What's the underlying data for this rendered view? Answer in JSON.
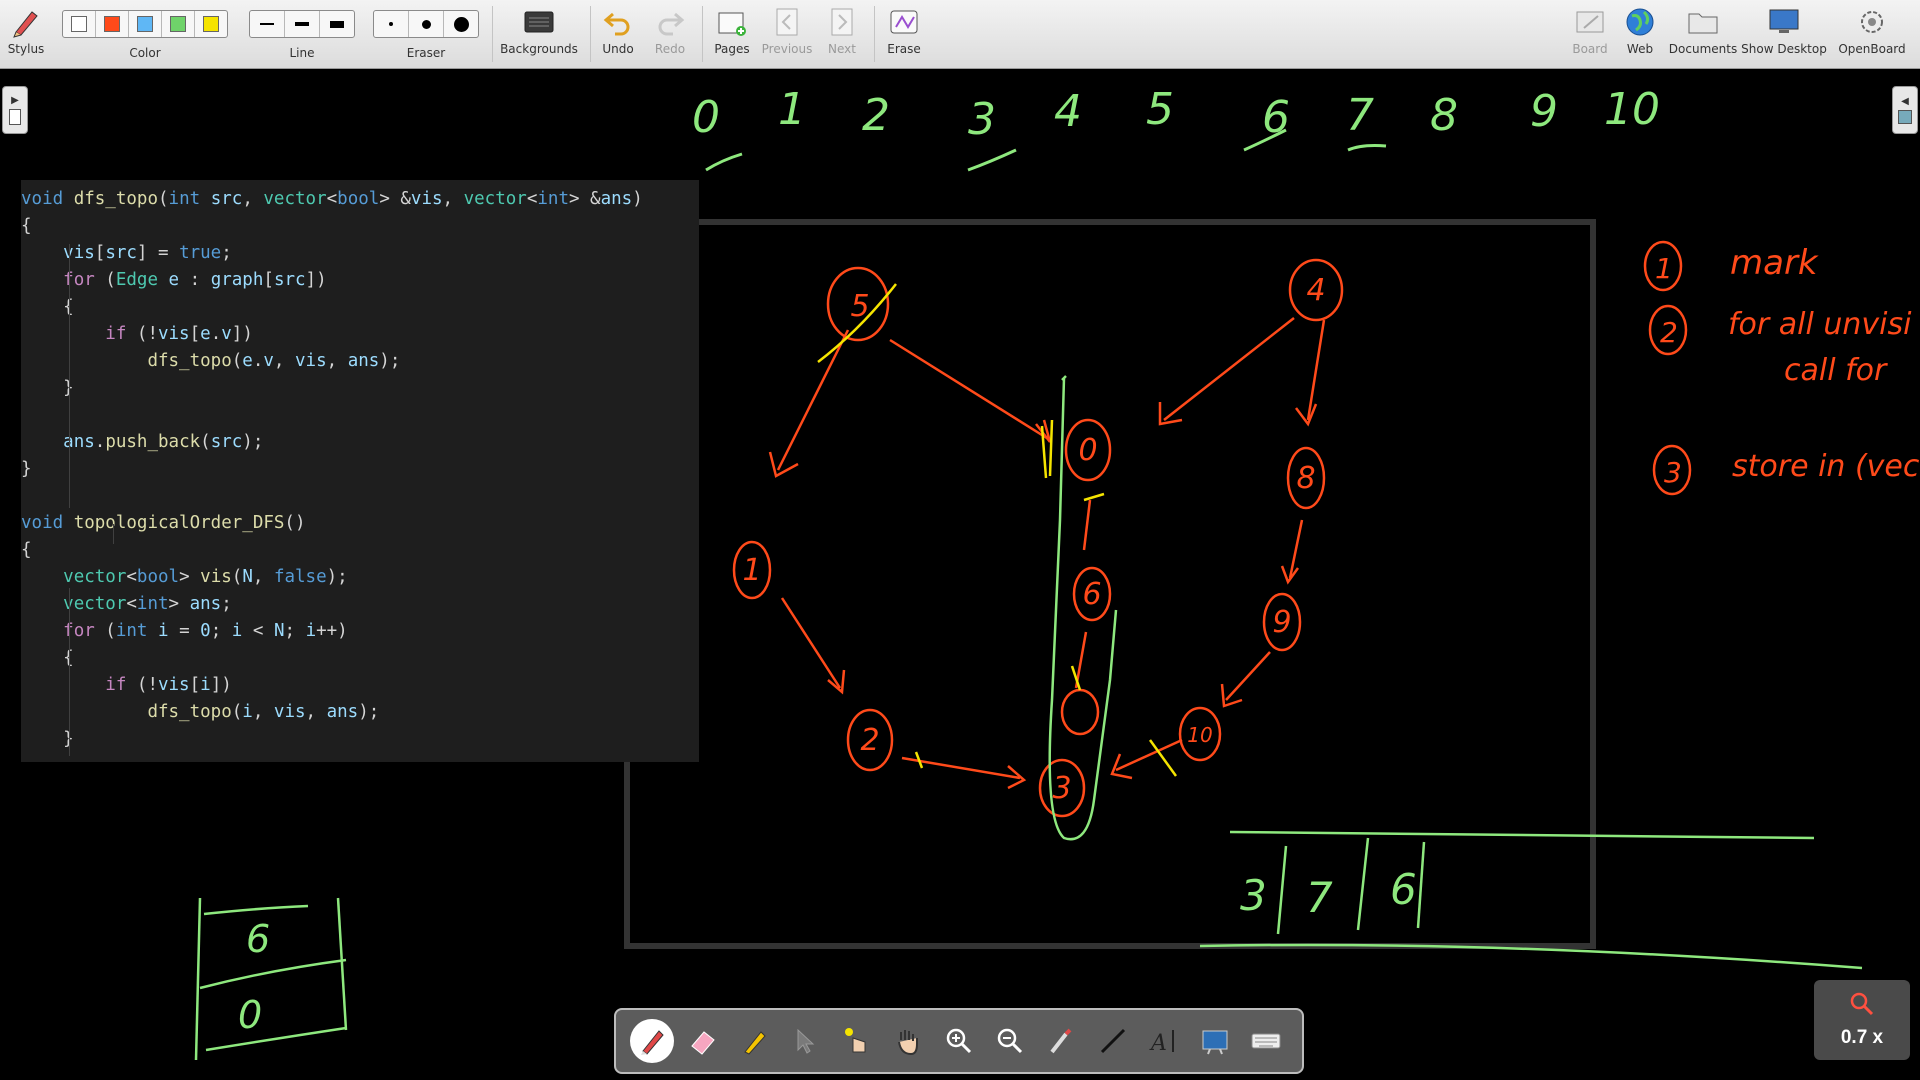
{
  "toolbar": {
    "stylus": "Stylus",
    "color": "Color",
    "line": "Line",
    "eraser": "Eraser",
    "backgrounds": "Backgrounds",
    "undo": "Undo",
    "redo": "Redo",
    "pages": "Pages",
    "previous": "Previous",
    "next": "Next",
    "erase": "Erase",
    "board": "Board",
    "web": "Web",
    "documents": "Documents",
    "show_desktop": "Show Desktop",
    "openboard": "OpenBoard",
    "colors": [
      "#ffffff",
      "#ff4a1a",
      "#5fb7f5",
      "#6fd36a",
      "#f5e400"
    ]
  },
  "code": {
    "lines": [
      "void dfs_topo(int src, vector<bool> &vis, vector<int> &ans)",
      "{",
      "    vis[src] = true;",
      "    for (Edge e : graph[src])",
      "    {",
      "        if (!vis[e.v])",
      "            dfs_topo(e.v, vis, ans);",
      "    }",
      "",
      "    ans.push_back(src);",
      "}",
      "",
      "void topologicalOrder_DFS()",
      "{",
      "    vector<bool> vis(N, false);",
      "    vector<int> ans;",
      "    for (int i = 0; i < N; i++)",
      "    {",
      "        if (!vis[i])",
      "            dfs_topo(i, vis, ans);",
      "    }"
    ]
  },
  "handwriting": {
    "top_numbers": [
      "0",
      "1",
      "2",
      "3",
      "4",
      "5",
      "6",
      "7",
      "8",
      "9",
      "10"
    ],
    "nodes": [
      "5",
      "4",
      "0",
      "6",
      "3",
      "1",
      "2",
      "8",
      "9",
      "10"
    ],
    "steps": [
      "1",
      "mark",
      "2",
      "for all unvisi",
      "call for",
      "3",
      "store in (vec"
    ],
    "answer_cells": [
      "3",
      "7",
      "6"
    ],
    "stack_cells": [
      "6",
      "0"
    ]
  },
  "zoom": {
    "level": "0.7 x"
  },
  "palette": {
    "tools": [
      "pen-icon",
      "eraser-icon",
      "highlighter-icon",
      "pointer-icon",
      "laser-pointer-icon",
      "hand-icon",
      "zoom-in-icon",
      "zoom-out-icon",
      "capture-icon",
      "line-icon",
      "text-icon",
      "board-icon",
      "keyboard-icon"
    ]
  }
}
